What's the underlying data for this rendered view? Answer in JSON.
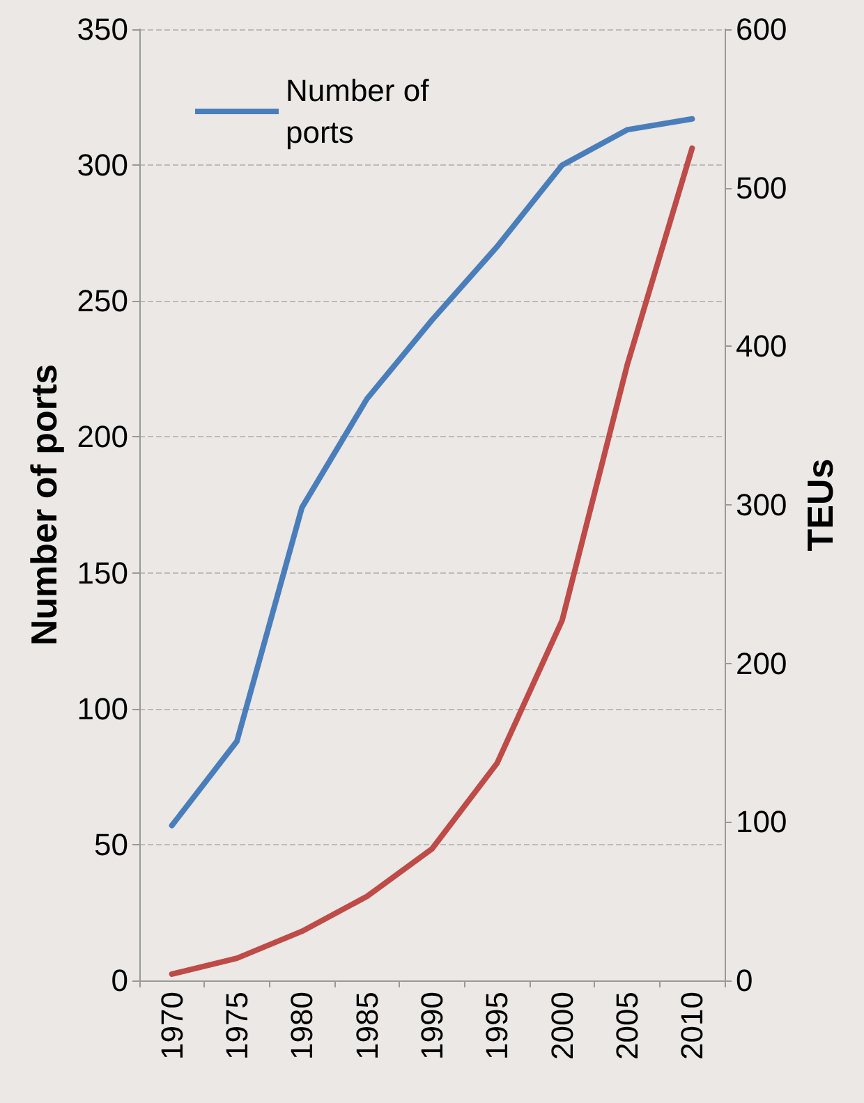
{
  "chart_data": {
    "type": "line",
    "ylabel": "Number of ports",
    "y2label": "TEUs",
    "categories": [
      "1970",
      "1975",
      "1980",
      "1985",
      "1990",
      "1995",
      "2000",
      "2005",
      "2010"
    ],
    "series": [
      {
        "name": "Number of ports",
        "color": "#4a7ebb",
        "values": [
          57,
          88,
          174,
          214,
          243,
          270,
          300,
          313,
          317
        ]
      },
      {
        "color": "#be4b48",
        "axis": "y2",
        "values": [
          4,
          14,
          31,
          53,
          83,
          137,
          227,
          388,
          525
        ]
      }
    ],
    "ylim": [
      0,
      350
    ],
    "yticks": [
      0,
      50,
      100,
      150,
      200,
      250,
      300,
      350
    ],
    "y2lim": [
      0,
      600
    ],
    "y2ticks": [
      0,
      100,
      200,
      300,
      400,
      500,
      600
    ],
    "grid": "y",
    "legend": "top left",
    "marker": "none",
    "line_style": "solid"
  }
}
